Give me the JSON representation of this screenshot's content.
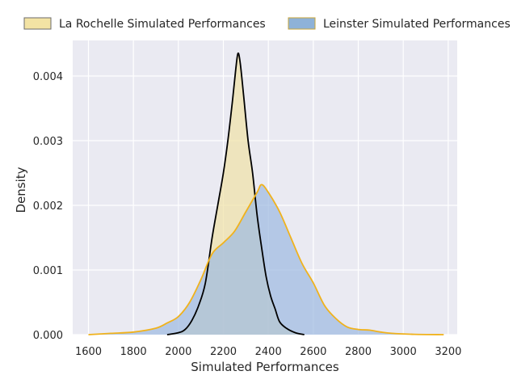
{
  "chart_data": {
    "type": "area",
    "title": "",
    "xlabel": "Simulated Performances",
    "ylabel": "Density",
    "xlim": [
      1530,
      3240
    ],
    "ylim": [
      0,
      0.00455
    ],
    "xticks": [
      1600,
      1800,
      2000,
      2200,
      2400,
      2600,
      2800,
      3000,
      3200
    ],
    "yticks": [
      0.0,
      0.001,
      0.002,
      0.003,
      0.004
    ],
    "ytick_labels": [
      "0.000",
      "0.001",
      "0.002",
      "0.003",
      "0.004"
    ],
    "grid": true,
    "legend_position": "top",
    "series": [
      {
        "name": "La Rochelle Simulated Performances",
        "fill_color": "#f0e2a8",
        "line_color": "#000000",
        "points": [
          [
            1950,
            0.0
          ],
          [
            2000,
            3e-05
          ],
          [
            2030,
            8e-05
          ],
          [
            2060,
            0.00022
          ],
          [
            2090,
            0.00045
          ],
          [
            2120,
            0.0008
          ],
          [
            2150,
            0.0015
          ],
          [
            2175,
            0.002
          ],
          [
            2200,
            0.0025
          ],
          [
            2220,
            0.003
          ],
          [
            2240,
            0.0036
          ],
          [
            2255,
            0.0041
          ],
          [
            2265,
            0.00435
          ],
          [
            2275,
            0.0042
          ],
          [
            2290,
            0.0037
          ],
          [
            2310,
            0.003
          ],
          [
            2330,
            0.0025
          ],
          [
            2350,
            0.00185
          ],
          [
            2370,
            0.00135
          ],
          [
            2390,
            0.0009
          ],
          [
            2410,
            0.0006
          ],
          [
            2430,
            0.0004
          ],
          [
            2450,
            0.0002
          ],
          [
            2480,
            0.0001
          ],
          [
            2520,
            3e-05
          ],
          [
            2560,
            0.0
          ]
        ]
      },
      {
        "name": "Leinster Simulated Performances",
        "fill_color": "#9fbbe0",
        "line_color": "#f0b21c",
        "points": [
          [
            1600,
            0.0
          ],
          [
            1700,
            2e-05
          ],
          [
            1800,
            4e-05
          ],
          [
            1900,
            0.0001
          ],
          [
            1950,
            0.00018
          ],
          [
            2000,
            0.00028
          ],
          [
            2050,
            0.0005
          ],
          [
            2100,
            0.00085
          ],
          [
            2150,
            0.00125
          ],
          [
            2200,
            0.00142
          ],
          [
            2250,
            0.0016
          ],
          [
            2300,
            0.0019
          ],
          [
            2350,
            0.0022
          ],
          [
            2370,
            0.00232
          ],
          [
            2400,
            0.0022
          ],
          [
            2450,
            0.0019
          ],
          [
            2500,
            0.0015
          ],
          [
            2550,
            0.0011
          ],
          [
            2600,
            0.0008
          ],
          [
            2650,
            0.00045
          ],
          [
            2700,
            0.00025
          ],
          [
            2750,
            0.00012
          ],
          [
            2800,
            8e-05
          ],
          [
            2850,
            7e-05
          ],
          [
            2900,
            4e-05
          ],
          [
            2950,
            2e-05
          ],
          [
            3050,
            5e-06
          ],
          [
            3180,
            0.0
          ]
        ]
      }
    ]
  }
}
